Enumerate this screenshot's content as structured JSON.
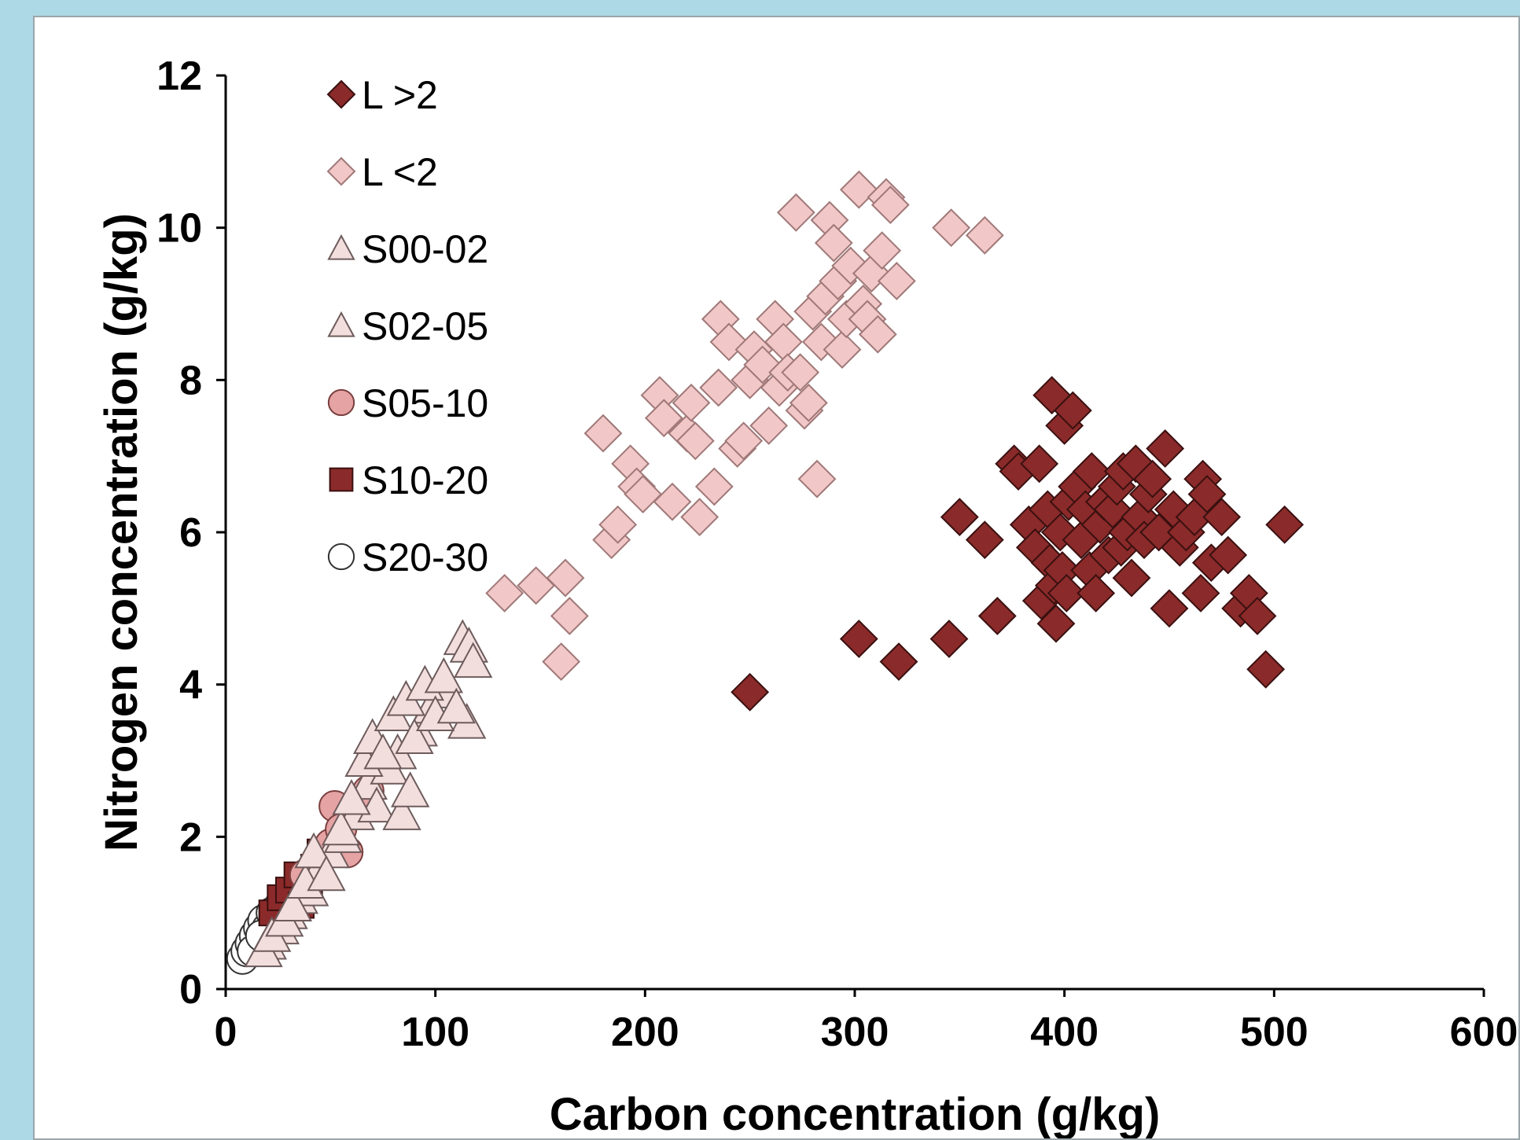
{
  "chart_data": {
    "type": "scatter",
    "xlabel": "Carbon concentration (g/kg)",
    "ylabel": "Nitrogen concentration (g/kg)",
    "xlim": [
      0,
      600
    ],
    "ylim": [
      0,
      12
    ],
    "x_ticks": [
      "0",
      "100",
      "200",
      "300",
      "400",
      "500",
      "600"
    ],
    "y_ticks": [
      "0",
      "2",
      "4",
      "6",
      "8",
      "10",
      "12"
    ],
    "grid": false,
    "legend_position": "top-left",
    "series": [
      {
        "name": "L >2",
        "marker": "diamond",
        "color": "#8B2A2A",
        "stroke": "#3a1010",
        "points": [
          [
            250,
            3.9
          ],
          [
            302,
            4.6
          ],
          [
            321,
            4.3
          ],
          [
            345,
            4.6
          ],
          [
            350,
            6.2
          ],
          [
            362,
            5.9
          ],
          [
            368,
            4.9
          ],
          [
            376,
            6.9
          ],
          [
            378,
            6.8
          ],
          [
            383,
            6.1
          ],
          [
            386,
            5.8
          ],
          [
            388,
            6.9
          ],
          [
            389,
            5.1
          ],
          [
            392,
            6.3
          ],
          [
            393,
            5.6
          ],
          [
            394,
            7.8
          ],
          [
            395,
            5.3
          ],
          [
            396,
            4.8
          ],
          [
            398,
            6.0
          ],
          [
            399,
            5.5
          ],
          [
            400,
            7.4
          ],
          [
            401,
            5.2
          ],
          [
            402,
            6.4
          ],
          [
            404,
            7.6
          ],
          [
            406,
            6.6
          ],
          [
            408,
            5.9
          ],
          [
            410,
            6.3
          ],
          [
            412,
            5.5
          ],
          [
            413,
            6.8
          ],
          [
            415,
            5.2
          ],
          [
            417,
            6.1
          ],
          [
            419,
            6.4
          ],
          [
            421,
            5.7
          ],
          [
            423,
            6.3
          ],
          [
            425,
            6.6
          ],
          [
            427,
            5.8
          ],
          [
            428,
            6.8
          ],
          [
            430,
            6.0
          ],
          [
            432,
            5.4
          ],
          [
            434,
            6.9
          ],
          [
            436,
            6.2
          ],
          [
            438,
            5.9
          ],
          [
            440,
            6.5
          ],
          [
            442,
            6.7
          ],
          [
            445,
            6.0
          ],
          [
            448,
            7.1
          ],
          [
            450,
            5.0
          ],
          [
            452,
            6.3
          ],
          [
            455,
            5.8
          ],
          [
            458,
            6.0
          ],
          [
            462,
            6.2
          ],
          [
            465,
            5.2
          ],
          [
            466,
            6.7
          ],
          [
            468,
            6.5
          ],
          [
            470,
            5.6
          ],
          [
            475,
            6.2
          ],
          [
            478,
            5.7
          ],
          [
            484,
            5.0
          ],
          [
            488,
            5.2
          ],
          [
            492,
            4.9
          ],
          [
            496,
            4.2
          ],
          [
            505,
            6.1
          ]
        ]
      },
      {
        "name": "L <2",
        "marker": "diamond",
        "color": "#F1C7C7",
        "stroke": "#a07878",
        "points": [
          [
            133,
            5.2
          ],
          [
            148,
            5.3
          ],
          [
            160,
            4.3
          ],
          [
            162,
            5.4
          ],
          [
            164,
            4.9
          ],
          [
            180,
            7.3
          ],
          [
            184,
            5.9
          ],
          [
            187,
            6.1
          ],
          [
            193,
            6.9
          ],
          [
            196,
            6.6
          ],
          [
            199,
            6.5
          ],
          [
            207,
            7.8
          ],
          [
            209,
            7.5
          ],
          [
            213,
            6.4
          ],
          [
            220,
            7.3
          ],
          [
            222,
            7.7
          ],
          [
            224,
            7.2
          ],
          [
            226,
            6.2
          ],
          [
            233,
            6.6
          ],
          [
            235,
            7.9
          ],
          [
            236,
            8.8
          ],
          [
            240,
            8.5
          ],
          [
            244,
            7.1
          ],
          [
            247,
            7.2
          ],
          [
            250,
            8.0
          ],
          [
            252,
            8.4
          ],
          [
            256,
            8.2
          ],
          [
            259,
            7.4
          ],
          [
            262,
            8.8
          ],
          [
            264,
            7.9
          ],
          [
            266,
            8.5
          ],
          [
            268,
            8.1
          ],
          [
            272,
            10.2
          ],
          [
            274,
            8.1
          ],
          [
            276,
            7.6
          ],
          [
            278,
            7.7
          ],
          [
            280,
            8.9
          ],
          [
            282,
            6.7
          ],
          [
            284,
            8.5
          ],
          [
            286,
            9.1
          ],
          [
            288,
            10.1
          ],
          [
            290,
            9.8
          ],
          [
            292,
            9.3
          ],
          [
            294,
            8.4
          ],
          [
            296,
            8.8
          ],
          [
            298,
            9.5
          ],
          [
            302,
            10.5
          ],
          [
            304,
            9.0
          ],
          [
            306,
            8.8
          ],
          [
            308,
            9.4
          ],
          [
            311,
            8.6
          ],
          [
            313,
            9.7
          ],
          [
            315,
            10.4
          ],
          [
            317,
            10.3
          ],
          [
            320,
            9.3
          ],
          [
            346,
            10.0
          ],
          [
            362,
            9.9
          ]
        ]
      },
      {
        "name": "S00-02",
        "marker": "triangle",
        "color": "#F3DEDE",
        "stroke": "#6e5c5c",
        "points": [
          [
            18,
            0.5
          ],
          [
            22,
            0.7
          ],
          [
            28,
            0.9
          ],
          [
            32,
            1.1
          ],
          [
            38,
            1.4
          ],
          [
            42,
            1.8
          ],
          [
            48,
            1.5
          ],
          [
            55,
            2.1
          ],
          [
            60,
            2.5
          ],
          [
            66,
            3.0
          ],
          [
            70,
            3.3
          ],
          [
            75,
            3.1
          ],
          [
            80,
            3.6
          ],
          [
            86,
            3.8
          ],
          [
            90,
            3.3
          ],
          [
            95,
            4.0
          ],
          [
            100,
            3.6
          ],
          [
            104,
            4.1
          ],
          [
            110,
            3.7
          ],
          [
            113,
            4.6
          ],
          [
            116,
            4.5
          ],
          [
            118,
            4.3
          ],
          [
            84,
            2.3
          ],
          [
            88,
            2.6
          ]
        ]
      },
      {
        "name": "S02-05",
        "marker": "triangle",
        "color": "#F3DEDE",
        "stroke": "#6e5c5c",
        "points": [
          [
            20,
            0.6
          ],
          [
            26,
            0.8
          ],
          [
            30,
            1.0
          ],
          [
            35,
            1.2
          ],
          [
            40,
            1.3
          ],
          [
            45,
            1.6
          ],
          [
            50,
            1.8
          ],
          [
            56,
            2.0
          ],
          [
            62,
            2.3
          ],
          [
            68,
            2.7
          ],
          [
            72,
            2.4
          ],
          [
            78,
            2.9
          ],
          [
            82,
            3.1
          ],
          [
            92,
            3.4
          ],
          [
            98,
            3.7
          ],
          [
            106,
            3.9
          ],
          [
            115,
            3.5
          ]
        ]
      },
      {
        "name": "S05-10",
        "marker": "circle",
        "color": "#E5A3A3",
        "stroke": "#7a3e3e",
        "points": [
          [
            38,
            1.5
          ],
          [
            45,
            1.7
          ],
          [
            50,
            1.9
          ],
          [
            52,
            2.4
          ],
          [
            55,
            2.1
          ],
          [
            58,
            1.8
          ],
          [
            65,
            2.5
          ],
          [
            68,
            2.6
          ]
        ]
      },
      {
        "name": "S10-20",
        "marker": "square",
        "color": "#8B2A2A",
        "stroke": "#3a1010",
        "points": [
          [
            22,
            1.0
          ],
          [
            26,
            1.2
          ],
          [
            30,
            1.3
          ],
          [
            34,
            1.5
          ],
          [
            36,
            1.1
          ],
          [
            40,
            1.4
          ],
          [
            42,
            1.6
          ],
          [
            45,
            1.8
          ]
        ]
      },
      {
        "name": "S20-30",
        "marker": "circle",
        "color": "#FFFFFF",
        "stroke": "#333333",
        "points": [
          [
            8,
            0.4
          ],
          [
            10,
            0.5
          ],
          [
            12,
            0.6
          ],
          [
            14,
            0.7
          ],
          [
            16,
            0.8
          ],
          [
            18,
            0.9
          ],
          [
            20,
            0.8
          ],
          [
            22,
            1.0
          ],
          [
            24,
            0.9
          ],
          [
            26,
            1.1
          ],
          [
            13,
            0.5
          ],
          [
            17,
            0.7
          ]
        ]
      }
    ]
  }
}
